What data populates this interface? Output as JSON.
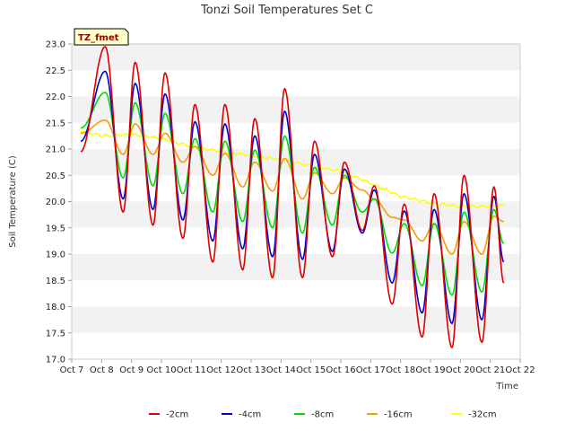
{
  "chart_data": {
    "type": "line",
    "title": "Tonzi Soil Temperatures Set C",
    "xlabel": "Time",
    "ylabel": "Soil Temperature (C)",
    "site_badge": "TZ_fmet",
    "x_tick_labels": [
      "Oct 7",
      "Oct 8",
      "Oct 9",
      "Oct 10",
      "Oct 11",
      "Oct 12",
      "Oct 13",
      "Oct 14",
      "Oct 15",
      "Oct 16",
      "Oct 17",
      "Oct 18",
      "Oct 19",
      "Oct 20",
      "Oct 21",
      "Oct 22"
    ],
    "x_range_days": [
      7,
      22
    ],
    "y_ticks": [
      "17.0",
      "17.5",
      "18.0",
      "18.5",
      "19.0",
      "19.5",
      "20.0",
      "20.5",
      "21.0",
      "21.5",
      "22.0",
      "22.5",
      "23.0"
    ],
    "ylim": [
      17.0,
      23.0
    ],
    "grid": "horizontal alternating bands",
    "legend_position": "bottom",
    "data_x_start_day": 7.3,
    "data_x_end_day": 21.45,
    "series": [
      {
        "name": "-2cm",
        "color": "#dd0000",
        "daily_max": [
          22.95,
          22.65,
          22.45,
          21.85,
          21.85,
          21.58,
          22.15,
          21.15,
          20.75,
          20.3,
          19.95,
          20.15,
          20.5,
          20.28
        ],
        "daily_min": [
          19.8,
          19.55,
          19.3,
          18.85,
          18.7,
          18.55,
          18.55,
          18.95,
          19.45,
          18.05,
          17.42,
          17.22,
          17.32,
          17.95
        ],
        "start": 20.95,
        "end": 18.45
      },
      {
        "name": "-4cm",
        "color": "#0000cc",
        "daily_max": [
          22.48,
          22.25,
          22.05,
          21.52,
          21.48,
          21.25,
          21.72,
          20.9,
          20.62,
          20.22,
          19.82,
          19.85,
          20.15,
          20.1
        ],
        "daily_min": [
          20.05,
          19.85,
          19.65,
          19.25,
          19.1,
          18.95,
          18.9,
          19.05,
          19.4,
          18.45,
          17.88,
          17.68,
          17.75,
          18.25
        ],
        "start": 21.15,
        "end": 18.85
      },
      {
        "name": "-8cm",
        "color": "#00dd00",
        "daily_max": [
          22.08,
          21.88,
          21.68,
          21.2,
          21.15,
          20.98,
          21.25,
          20.65,
          20.5,
          20.05,
          19.58,
          19.58,
          19.8,
          19.85
        ],
        "daily_min": [
          20.45,
          20.3,
          20.15,
          19.8,
          19.62,
          19.5,
          19.4,
          19.55,
          19.8,
          19.02,
          18.4,
          18.22,
          18.28,
          18.62
        ],
        "start": 21.4,
        "end": 19.2
      },
      {
        "name": "-16cm",
        "color": "#ff9900",
        "daily_max": [
          21.55,
          21.48,
          21.3,
          21.05,
          20.92,
          20.75,
          20.82,
          20.55,
          20.45,
          20.05,
          19.65,
          19.58,
          19.62,
          19.72
        ],
        "daily_min": [
          20.9,
          20.9,
          20.75,
          20.5,
          20.28,
          20.2,
          20.05,
          20.15,
          20.22,
          19.7,
          19.25,
          19.0,
          19.0,
          19.18
        ],
        "start": 21.3,
        "end": 19.62
      },
      {
        "name": "-32cm",
        "color": "#ffff00",
        "trend": [
          [
            7.3,
            21.35
          ],
          [
            8,
            21.25
          ],
          [
            9,
            21.28
          ],
          [
            10,
            21.2
          ],
          [
            11,
            21.05
          ],
          [
            12,
            20.95
          ],
          [
            13,
            20.88
          ],
          [
            14,
            20.8
          ],
          [
            15,
            20.68
          ],
          [
            16,
            20.58
          ],
          [
            17,
            20.35
          ],
          [
            18,
            20.1
          ],
          [
            19,
            19.98
          ],
          [
            20,
            19.9
          ],
          [
            21.45,
            19.92
          ]
        ],
        "start": 21.35,
        "end": 19.92
      }
    ]
  }
}
